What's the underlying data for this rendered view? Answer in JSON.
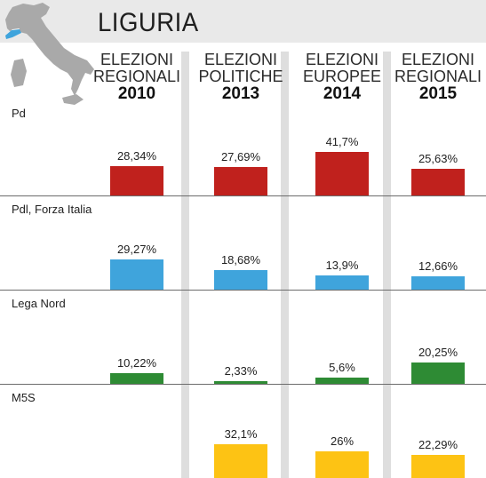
{
  "header": {
    "title": "LIGURIA"
  },
  "chart_data": {
    "type": "bar",
    "categories": [
      {
        "line1": "ELEZIONI",
        "line2": "REGIONALI",
        "year": "2010"
      },
      {
        "line1": "ELEZIONI",
        "line2": "POLITICHE",
        "year": "2013"
      },
      {
        "line1": "ELEZIONI",
        "line2": "EUROPEE",
        "year": "2014"
      },
      {
        "line1": "ELEZIONI",
        "line2": "REGIONALI",
        "year": "2015"
      }
    ],
    "value_max": 45,
    "series": [
      {
        "name": "Pd",
        "color": "#c0211d",
        "values": [
          28.34,
          27.69,
          41.7,
          25.63
        ],
        "labels": [
          "28,34%",
          "27,69%",
          "41,7%",
          "25,63%"
        ]
      },
      {
        "name": "Pdl, Forza Italia",
        "color": "#3fa4dc",
        "values": [
          29.27,
          18.68,
          13.9,
          12.66
        ],
        "labels": [
          "29,27%",
          "18,68%",
          "13,9%",
          "12,66%"
        ]
      },
      {
        "name": "Lega Nord",
        "color": "#2e8b34",
        "values": [
          10.22,
          2.33,
          5.6,
          20.25
        ],
        "labels": [
          "10,22%",
          "2,33%",
          "5,6%",
          "20,25%"
        ]
      },
      {
        "name": "M5S",
        "color": "#fdc314",
        "values": [
          null,
          32.1,
          26,
          22.29
        ],
        "labels": [
          "",
          "32,1%",
          "26%",
          "22,29%"
        ]
      }
    ]
  }
}
